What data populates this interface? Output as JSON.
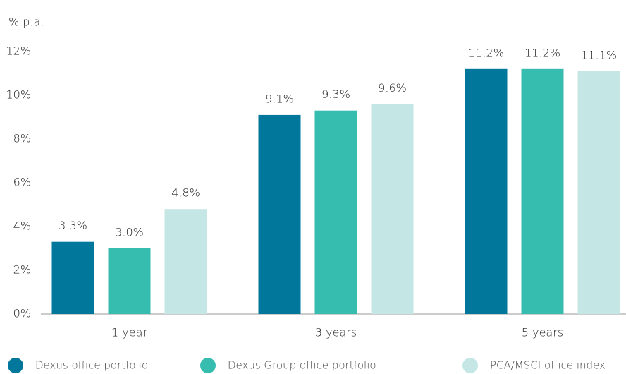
{
  "chart_data": {
    "type": "bar",
    "y_axis_label": "% p.a.",
    "categories": [
      "1 year",
      "3 years",
      "5 years"
    ],
    "series": [
      {
        "name": "Dexus office portfolio",
        "color": "#00779b",
        "values": [
          3.3,
          9.1,
          11.2
        ],
        "value_labels": [
          "3.3%",
          "9.1%",
          "11.2%"
        ]
      },
      {
        "name": "Dexus Group office portfolio",
        "color": "#37bdb0",
        "values": [
          3.0,
          9.3,
          11.2
        ],
        "value_labels": [
          "3.0%",
          "9.3%",
          "11.2%"
        ]
      },
      {
        "name": "PCA/MSCI office index",
        "color": "#c4e7e6",
        "values": [
          4.8,
          9.6,
          11.1
        ],
        "value_labels": [
          "4.8%",
          "9.6%",
          "11.1%"
        ]
      }
    ],
    "ylim": [
      0,
      12
    ],
    "yticks": [
      {
        "value": 0,
        "label": "0%"
      },
      {
        "value": 2,
        "label": "2%"
      },
      {
        "value": 4,
        "label": "4%"
      },
      {
        "value": 6,
        "label": "6%"
      },
      {
        "value": 8,
        "label": "8%"
      },
      {
        "value": 10,
        "label": "10%"
      },
      {
        "value": 12,
        "label": "12%"
      }
    ],
    "legend": "bottom"
  }
}
